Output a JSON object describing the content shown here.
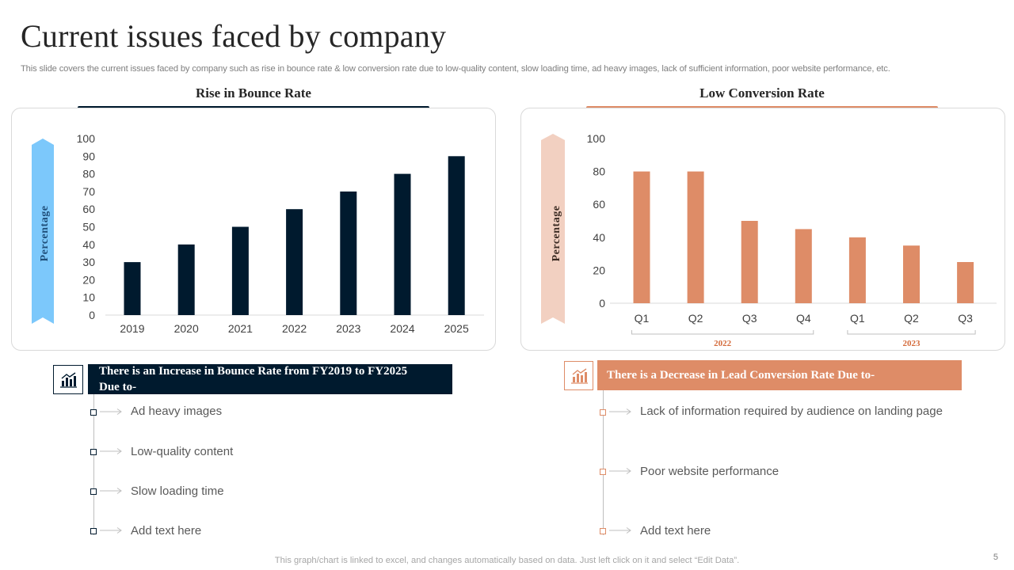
{
  "slide": {
    "title": "Current issues faced by company",
    "subtitle": "This slide covers the current issues faced by company such as rise in bounce rate & low conversion rate due to low-quality content, slow loading time, ad heavy images, lack of sufficient information, poor website performance, etc.",
    "footer": "This graph/chart is linked to excel,  and changes automatically based on data. Just left click on it and select “Edit Data”.",
    "page_number": "5"
  },
  "colors": {
    "dark": "#001a2e",
    "orange": "#de8c67",
    "light_blue": "#7cc8fb",
    "peach": "#f2d0c1"
  },
  "left_panel": {
    "heading": "Rise in Bounce Rate",
    "banner_text": "There is  an Increase in Bounce Rate from FY2019 to FY2025 Due to-",
    "banner_icon": "bar-chart-icon",
    "items": [
      "Ad heavy images",
      "Low-quality content",
      "Slow loading time",
      "Add text here"
    ]
  },
  "right_panel": {
    "heading": "Low Conversion Rate",
    "banner_text": "There is  a Decrease in Lead Conversion Rate Due to-",
    "banner_icon": "bar-chart-icon",
    "items": [
      "Lack of information required by audience on landing page",
      "Poor website performance",
      "Add text here"
    ]
  },
  "chart_data": [
    {
      "type": "bar",
      "title": "Rise in Bounce Rate",
      "xlabel": "",
      "ylabel": "Percentage",
      "categories": [
        "2019",
        "2020",
        "2021",
        "2022",
        "2023",
        "2024",
        "2025"
      ],
      "values": [
        30,
        40,
        50,
        60,
        70,
        80,
        90
      ],
      "ylim": [
        0,
        100
      ],
      "yticks": [
        0,
        10,
        20,
        30,
        40,
        50,
        60,
        70,
        80,
        90,
        100
      ],
      "grid": false
    },
    {
      "type": "bar",
      "title": "Low Conversion Rate",
      "xlabel": "",
      "ylabel": "Percentage",
      "categories": [
        "Q1",
        "Q2",
        "Q3",
        "Q4",
        "Q1",
        "Q2",
        "Q3"
      ],
      "values": [
        80,
        80,
        50,
        45,
        40,
        35,
        25
      ],
      "groups": [
        {
          "label": "2022",
          "count": 4
        },
        {
          "label": "2023",
          "count": 3
        }
      ],
      "ylim": [
        0,
        100
      ],
      "yticks": [
        0,
        20,
        40,
        60,
        80,
        100
      ],
      "grid": false
    }
  ]
}
